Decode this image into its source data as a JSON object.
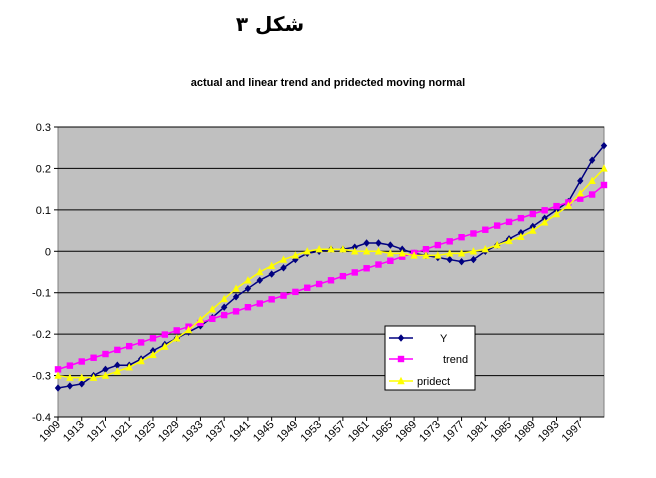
{
  "figure_heading": "شكل ٣",
  "chart_data": {
    "type": "line",
    "title": "actual and linear trend and pridected moving normal",
    "xlabel": "",
    "ylabel": "",
    "ylim": [
      -0.4,
      0.3
    ],
    "yticks": [
      "0.3",
      "0.2",
      "0.1",
      "0",
      "-0.1",
      "-0.2",
      "-0.3",
      "-0.4"
    ],
    "xticks": [
      "1909",
      "1913",
      "1917",
      "1921",
      "1925",
      "1929",
      "1933",
      "1937",
      "1941",
      "1945",
      "1949",
      "1953",
      "1957",
      "1961",
      "1965",
      "1969",
      "1973",
      "1977",
      "1981",
      "1985",
      "1989",
      "1993",
      "1997"
    ],
    "x": [
      1909,
      1911,
      1913,
      1915,
      1917,
      1919,
      1921,
      1923,
      1925,
      1927,
      1929,
      1931,
      1933,
      1935,
      1937,
      1939,
      1941,
      1943,
      1945,
      1947,
      1949,
      1951,
      1953,
      1955,
      1957,
      1959,
      1961,
      1963,
      1965,
      1967,
      1969,
      1971,
      1973,
      1975,
      1977,
      1979,
      1981,
      1983,
      1985,
      1987,
      1989,
      1991,
      1993,
      1995,
      1997,
      1999,
      2001
    ],
    "grid": true,
    "plot_background": "#c0c0c0",
    "legend_position": "lower-center",
    "series": [
      {
        "name": "Y",
        "color": "#000080",
        "marker": "diamond",
        "values": [
          -0.33,
          -0.325,
          -0.32,
          -0.3,
          -0.285,
          -0.275,
          -0.275,
          -0.26,
          -0.24,
          -0.225,
          -0.21,
          -0.195,
          -0.18,
          -0.16,
          -0.135,
          -0.11,
          -0.09,
          -0.07,
          -0.055,
          -0.04,
          -0.02,
          -0.005,
          0.0,
          0.005,
          0.005,
          0.01,
          0.02,
          0.02,
          0.015,
          0.005,
          -0.005,
          -0.01,
          -0.015,
          -0.02,
          -0.025,
          -0.02,
          0.0,
          0.015,
          0.03,
          0.045,
          0.06,
          0.08,
          0.1,
          0.12,
          0.17,
          0.22,
          0.255
        ]
      },
      {
        "name": "trend",
        "color": "#ff00ff",
        "marker": "square",
        "values": [
          -0.285,
          -0.276,
          -0.266,
          -0.257,
          -0.248,
          -0.238,
          -0.229,
          -0.22,
          -0.21,
          -0.201,
          -0.191,
          -0.182,
          -0.173,
          -0.163,
          -0.154,
          -0.145,
          -0.135,
          -0.126,
          -0.116,
          -0.107,
          -0.098,
          -0.088,
          -0.079,
          -0.07,
          -0.06,
          -0.051,
          -0.041,
          -0.032,
          -0.023,
          -0.013,
          -0.004,
          0.005,
          0.015,
          0.024,
          0.034,
          0.043,
          0.052,
          0.062,
          0.071,
          0.08,
          0.09,
          0.099,
          0.109,
          0.118,
          0.127,
          0.137,
          0.16
        ]
      },
      {
        "name": "pridect",
        "color": "#ffff00",
        "marker": "triangle",
        "values": [
          -0.3,
          -0.305,
          -0.305,
          -0.305,
          -0.3,
          -0.29,
          -0.28,
          -0.265,
          -0.25,
          -0.23,
          -0.21,
          -0.19,
          -0.165,
          -0.14,
          -0.115,
          -0.09,
          -0.07,
          -0.05,
          -0.035,
          -0.02,
          -0.01,
          0.0,
          0.005,
          0.005,
          0.005,
          0.0,
          0.0,
          0.0,
          -0.005,
          -0.005,
          -0.01,
          -0.01,
          -0.01,
          -0.005,
          -0.005,
          0.0,
          0.005,
          0.015,
          0.025,
          0.035,
          0.05,
          0.07,
          0.09,
          0.11,
          0.14,
          0.17,
          0.2
        ]
      }
    ]
  }
}
